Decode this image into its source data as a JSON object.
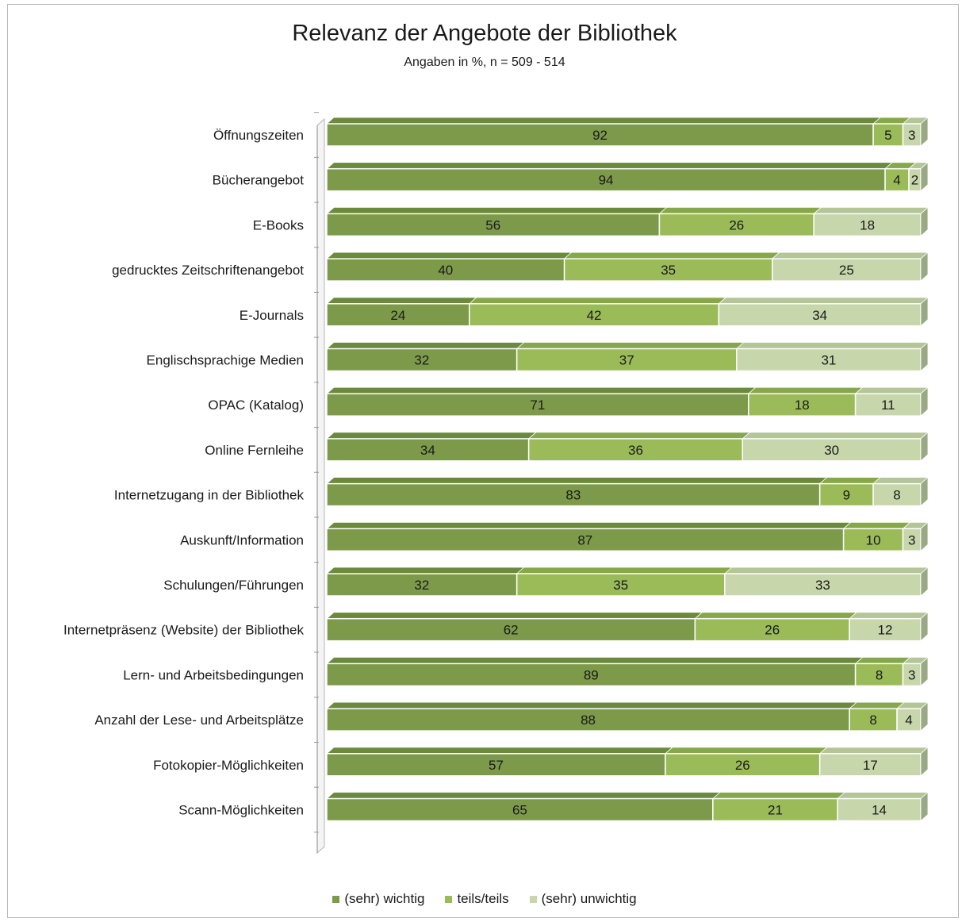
{
  "chart_data": {
    "type": "bar",
    "stacked": true,
    "orientation": "horizontal",
    "title": "Relevanz der Angebote der Bibliothek",
    "subtitle": "Angaben in %, n = 509 - 514",
    "categories": [
      "Öffnungszeiten",
      "Bücherangebot",
      "E-Books",
      "gedrucktes Zeitschriftenangebot",
      "E-Journals",
      "Englischsprachige Medien",
      "OPAC (Katalog)",
      "Online Fernleihe",
      "Internetzugang in der Bibliothek",
      "Auskunft/Information",
      "Schulungen/Führungen",
      "Internetpräsenz (Website) der Bibliothek",
      "Lern- und Arbeitsbedingungen",
      "Anzahl der Lese- und Arbeitsplätze",
      "Fotokopier-Möglichkeiten",
      "Scann-Möglichkeiten"
    ],
    "series": [
      {
        "name": "(sehr) wichtig",
        "color": "#7d9a4a",
        "values": [
          92,
          94,
          56,
          40,
          24,
          32,
          71,
          34,
          83,
          87,
          32,
          62,
          89,
          88,
          57,
          65
        ]
      },
      {
        "name": "teils/teils",
        "color": "#9bbb59",
        "values": [
          5,
          4,
          26,
          35,
          42,
          37,
          18,
          36,
          9,
          10,
          35,
          26,
          8,
          8,
          26,
          21
        ]
      },
      {
        "name": "(sehr) unwichtig",
        "color": "#c8d6ac",
        "values": [
          3,
          2,
          18,
          25,
          34,
          31,
          11,
          30,
          8,
          3,
          33,
          12,
          3,
          4,
          17,
          14
        ]
      }
    ],
    "xlim": [
      0,
      100
    ],
    "legend_position": "bottom",
    "grid": false,
    "style": "3d"
  }
}
